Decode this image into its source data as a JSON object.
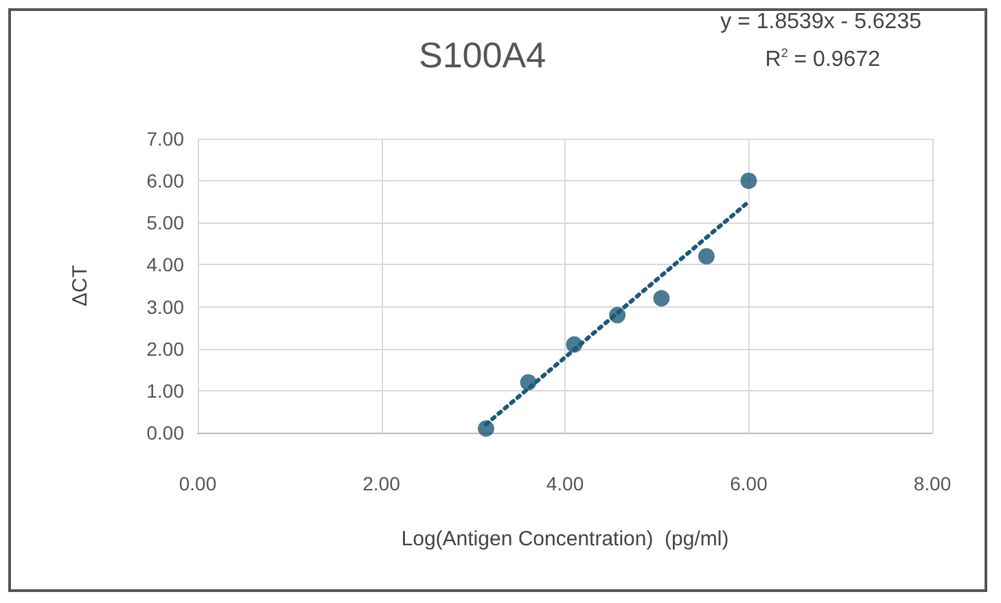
{
  "chart_data": {
    "type": "scatter",
    "title": "S100A4",
    "xlabel": "Log(Antigen Concentration)  (pg/ml)",
    "ylabel": "ΔCT",
    "annotations": [
      "y = 1.8539x - 5.6235",
      "R$^{2}$ = 0.9672"
    ],
    "series": [
      {
        "color": "#1b5a78",
        "marker": "circle",
        "x": [
          3.14,
          3.6,
          4.1,
          4.57,
          5.05,
          5.54,
          6.0
        ],
        "values": [
          0.1,
          1.2,
          2.1,
          2.8,
          3.2,
          4.2,
          6.0
        ]
      },
      {
        "type": "line",
        "color": "#1b5a78",
        "marker": "none",
        "line_style": "dotted",
        "x": [
          3.14,
          6.0
        ],
        "values": [
          0.2,
          5.5
        ]
      }
    ],
    "xlim": [
      0,
      8
    ],
    "xticks": [
      {
        "value": 0,
        "label": "0.00"
      },
      {
        "value": 2,
        "label": "2.00"
      },
      {
        "value": 4,
        "label": "4.00"
      },
      {
        "value": 6,
        "label": "6.00"
      },
      {
        "value": 8,
        "label": "8.00"
      }
    ],
    "ylim": [
      0,
      7
    ],
    "yticks": [
      {
        "value": 0,
        "label": "0.00"
      },
      {
        "value": 1,
        "label": "1.00"
      },
      {
        "value": 2,
        "label": "2.00"
      },
      {
        "value": 3,
        "label": "3.00"
      },
      {
        "value": 4,
        "label": "4.00"
      },
      {
        "value": 5,
        "label": "5.00"
      },
      {
        "value": 6,
        "label": "6.00"
      },
      {
        "value": 7,
        "label": "7.00"
      }
    ],
    "grid": true
  }
}
